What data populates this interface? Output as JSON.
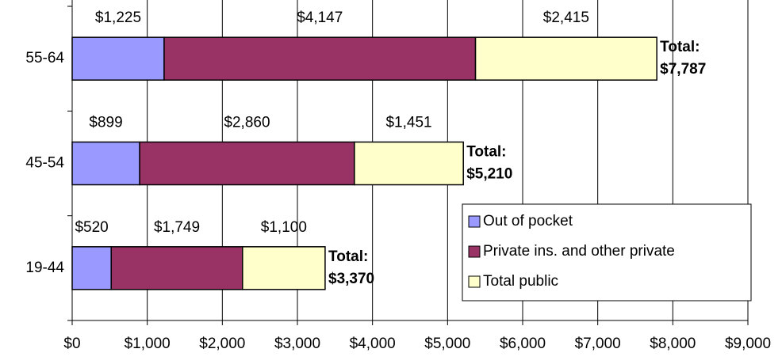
{
  "chart_data": {
    "type": "stacked-bar-horizontal",
    "categories": [
      "55-64",
      "45-54",
      "19-44"
    ],
    "series": [
      {
        "name": "Out of pocket",
        "color": "#9999ff",
        "values": [
          1225,
          899,
          520
        ],
        "value_labels": [
          "$1,225",
          "$899",
          "$520"
        ]
      },
      {
        "name": "Private ins. and other private",
        "color": "#993366",
        "values": [
          4147,
          2860,
          1749
        ],
        "value_labels": [
          "$4,147",
          "$2,860",
          "$1,749"
        ]
      },
      {
        "name": "Total public",
        "color": "#ffffcc",
        "values": [
          2415,
          1451,
          1100
        ],
        "value_labels": [
          "$2,415",
          "$1,451",
          "$1,100"
        ]
      }
    ],
    "total_title": "Total:",
    "totals": [
      7787,
      5210,
      3370
    ],
    "total_labels": [
      "$7,787",
      "$5,210",
      "$3,370"
    ],
    "xlim": [
      0,
      9000
    ],
    "xticks": [
      {
        "value": 0,
        "label": "$0"
      },
      {
        "value": 1000,
        "label": "$1,000"
      },
      {
        "value": 2000,
        "label": "$2,000"
      },
      {
        "value": 3000,
        "label": "$3,000"
      },
      {
        "value": 4000,
        "label": "$4,000"
      },
      {
        "value": 5000,
        "label": "$5,000"
      },
      {
        "value": 6000,
        "label": "$6,000"
      },
      {
        "value": 7000,
        "label": "$7,000"
      },
      {
        "value": 8000,
        "label": "$8,000"
      },
      {
        "value": 9000,
        "label": "$9,000"
      }
    ],
    "grid": true,
    "legend": "lower right"
  }
}
